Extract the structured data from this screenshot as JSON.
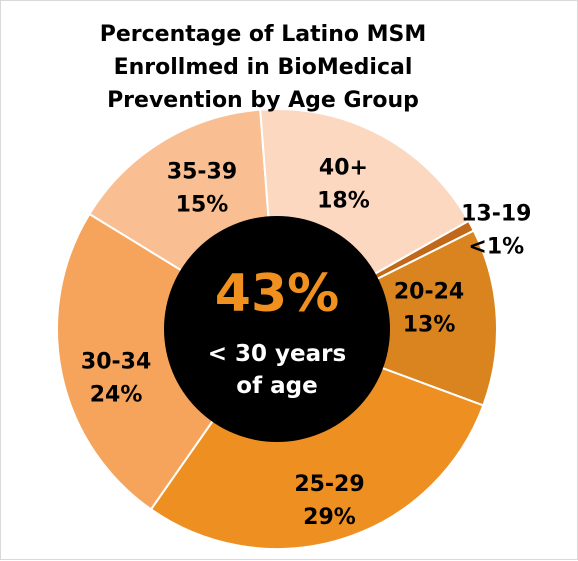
{
  "chart_data": {
    "type": "pie",
    "style": "donut",
    "title_lines": [
      "Percentage of Latino MSM",
      "Enrollmed in BioMedical",
      "Prevention by Age Group"
    ],
    "slices": [
      {
        "label": "13-19",
        "value_text": "<1%",
        "value": 0.8,
        "color": "#c1681a"
      },
      {
        "label": "20-24",
        "value_text": "13%",
        "value": 13,
        "color": "#d9841f"
      },
      {
        "label": "25-29",
        "value_text": "29%",
        "value": 29,
        "color": "#ee8f22"
      },
      {
        "label": "30-34",
        "value_text": "24%",
        "value": 24,
        "color": "#f6a45c"
      },
      {
        "label": "35-39",
        "value_text": "15%",
        "value": 15,
        "color": "#f9bf92"
      },
      {
        "label": "40+",
        "value_text": "18%",
        "value": 18,
        "color": "#fcd8c0"
      }
    ],
    "center": {
      "big_value": "43%",
      "caption_lines": [
        "< 30 years",
        "of age"
      ],
      "fill": "#000000",
      "big_value_color": "#f0901e"
    }
  }
}
